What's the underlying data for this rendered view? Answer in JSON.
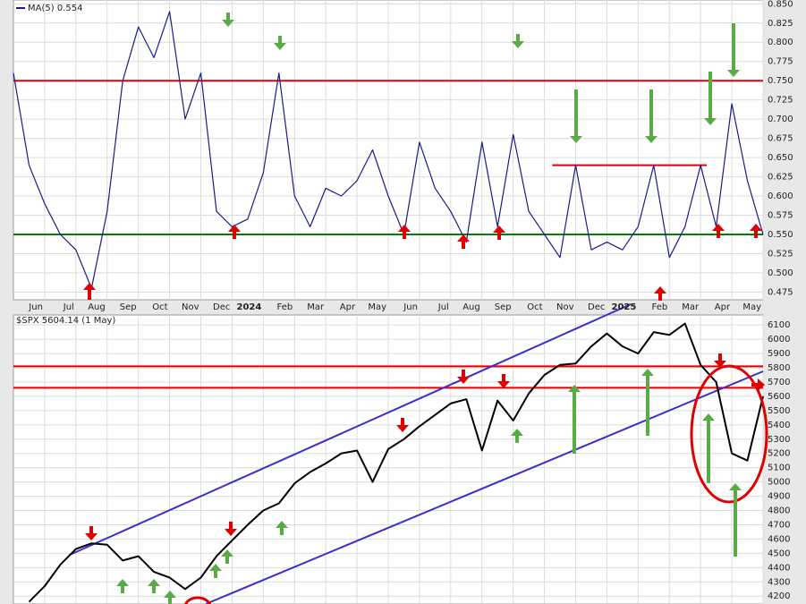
{
  "chart_data": [
    {
      "type": "line",
      "xlim": [
        0,
        24
      ],
      "xticks": [
        {
          "value": 1,
          "label": "Jun"
        },
        {
          "value": 2,
          "label": "Jul"
        },
        {
          "value": 3,
          "label": "Aug"
        },
        {
          "value": 4,
          "label": "Sep"
        },
        {
          "value": 5,
          "label": "Oct"
        },
        {
          "value": 6,
          "label": "Nov"
        },
        {
          "value": 7,
          "label": "Dec"
        },
        {
          "value": 8,
          "label": "2024"
        },
        {
          "value": 9,
          "label": "Feb"
        },
        {
          "value": 10,
          "label": "Mar"
        },
        {
          "value": 11,
          "label": "Apr"
        },
        {
          "value": 12,
          "label": "May"
        },
        {
          "value": 13,
          "label": "Jun"
        },
        {
          "value": 14,
          "label": "Jul"
        },
        {
          "value": 15,
          "label": "Aug"
        },
        {
          "value": 16,
          "label": "Sep"
        },
        {
          "value": 17,
          "label": "Oct"
        },
        {
          "value": 18,
          "label": "Nov"
        },
        {
          "value": 19,
          "label": "Dec"
        },
        {
          "value": 20,
          "label": "2025"
        },
        {
          "value": 21,
          "label": "Feb"
        },
        {
          "value": 22,
          "label": "Mar"
        },
        {
          "value": 23,
          "label": "Apr"
        },
        {
          "value": 24,
          "label": "May"
        }
      ],
      "ylim": [
        0.465,
        0.855
      ],
      "yticks": [
        {
          "value": 0.85,
          "label": "0.850"
        },
        0.825,
        {
          "value": 0.8,
          "label": "0.800"
        },
        0.775,
        {
          "value": 0.75,
          "label": "0.750"
        },
        0.725,
        {
          "value": 0.7,
          "label": "0.700"
        },
        0.675,
        {
          "value": 0.65,
          "label": "0.650"
        },
        0.625,
        {
          "value": 0.6,
          "label": "0.600"
        },
        0.575,
        {
          "value": 0.55,
          "label": "0.550"
        },
        0.525,
        {
          "value": 0.5,
          "label": "0.500"
        },
        0.475
      ],
      "grid": true,
      "series": [
        {
          "name": "MA(5) 0.554",
          "color": "#1a1a8c",
          "values": [
            0.76,
            0.64,
            0.59,
            0.55,
            0.53,
            0.48,
            0.58,
            0.75,
            0.82,
            0.78,
            0.84,
            0.7,
            0.76,
            0.58,
            0.56,
            0.57,
            0.63,
            0.76,
            0.6,
            0.56,
            0.61,
            0.6,
            0.62,
            0.66,
            0.6,
            0.55,
            0.67,
            0.61,
            0.58,
            0.54,
            0.67,
            0.56,
            0.68,
            0.58,
            0.55,
            0.52,
            0.64,
            0.53,
            0.54,
            0.53,
            0.56,
            0.64,
            0.52,
            0.56,
            0.64,
            0.56,
            0.72,
            0.62,
            0.55
          ]
        }
      ],
      "hlines": [
        {
          "value": 0.75,
          "color": "#e00000"
        },
        {
          "value": 0.55,
          "color": "#008000"
        },
        {
          "value": 0.64,
          "color": "#e00000",
          "from": 17.25,
          "to": 22.2
        }
      ]
    },
    {
      "type": "line",
      "xlim": [
        0,
        24
      ],
      "ylim": [
        4145,
        6170
      ],
      "yticks": [
        6100,
        6000,
        5900,
        5800,
        5700,
        5600,
        5500,
        5400,
        5300,
        5200,
        5100,
        5000,
        4900,
        4800,
        4700,
        4600,
        4500,
        4400,
        4300,
        4200
      ],
      "grid": true,
      "series": [
        {
          "name": "$SPX 5604.14 (1 May)",
          "color": "#000000",
          "values": [
            null,
            4160,
            4270,
            4420,
            4530,
            4570,
            4560,
            4450,
            4480,
            4370,
            4330,
            4250,
            4330,
            4480,
            4590,
            4700,
            4800,
            4850,
            4990,
            5070,
            5130,
            5200,
            5220,
            5000,
            5230,
            5300,
            5390,
            5470,
            5550,
            5580,
            5220,
            5570,
            5430,
            5620,
            5750,
            5820,
            5830,
            5950,
            6040,
            5950,
            5900,
            6050,
            6030,
            6110,
            5820,
            5700,
            5200,
            5150,
            5600
          ]
        }
      ],
      "hlines": [
        {
          "value": 5810,
          "color": "#e00000"
        },
        {
          "value": 5660,
          "color": "#e00000"
        }
      ]
    }
  ]
}
